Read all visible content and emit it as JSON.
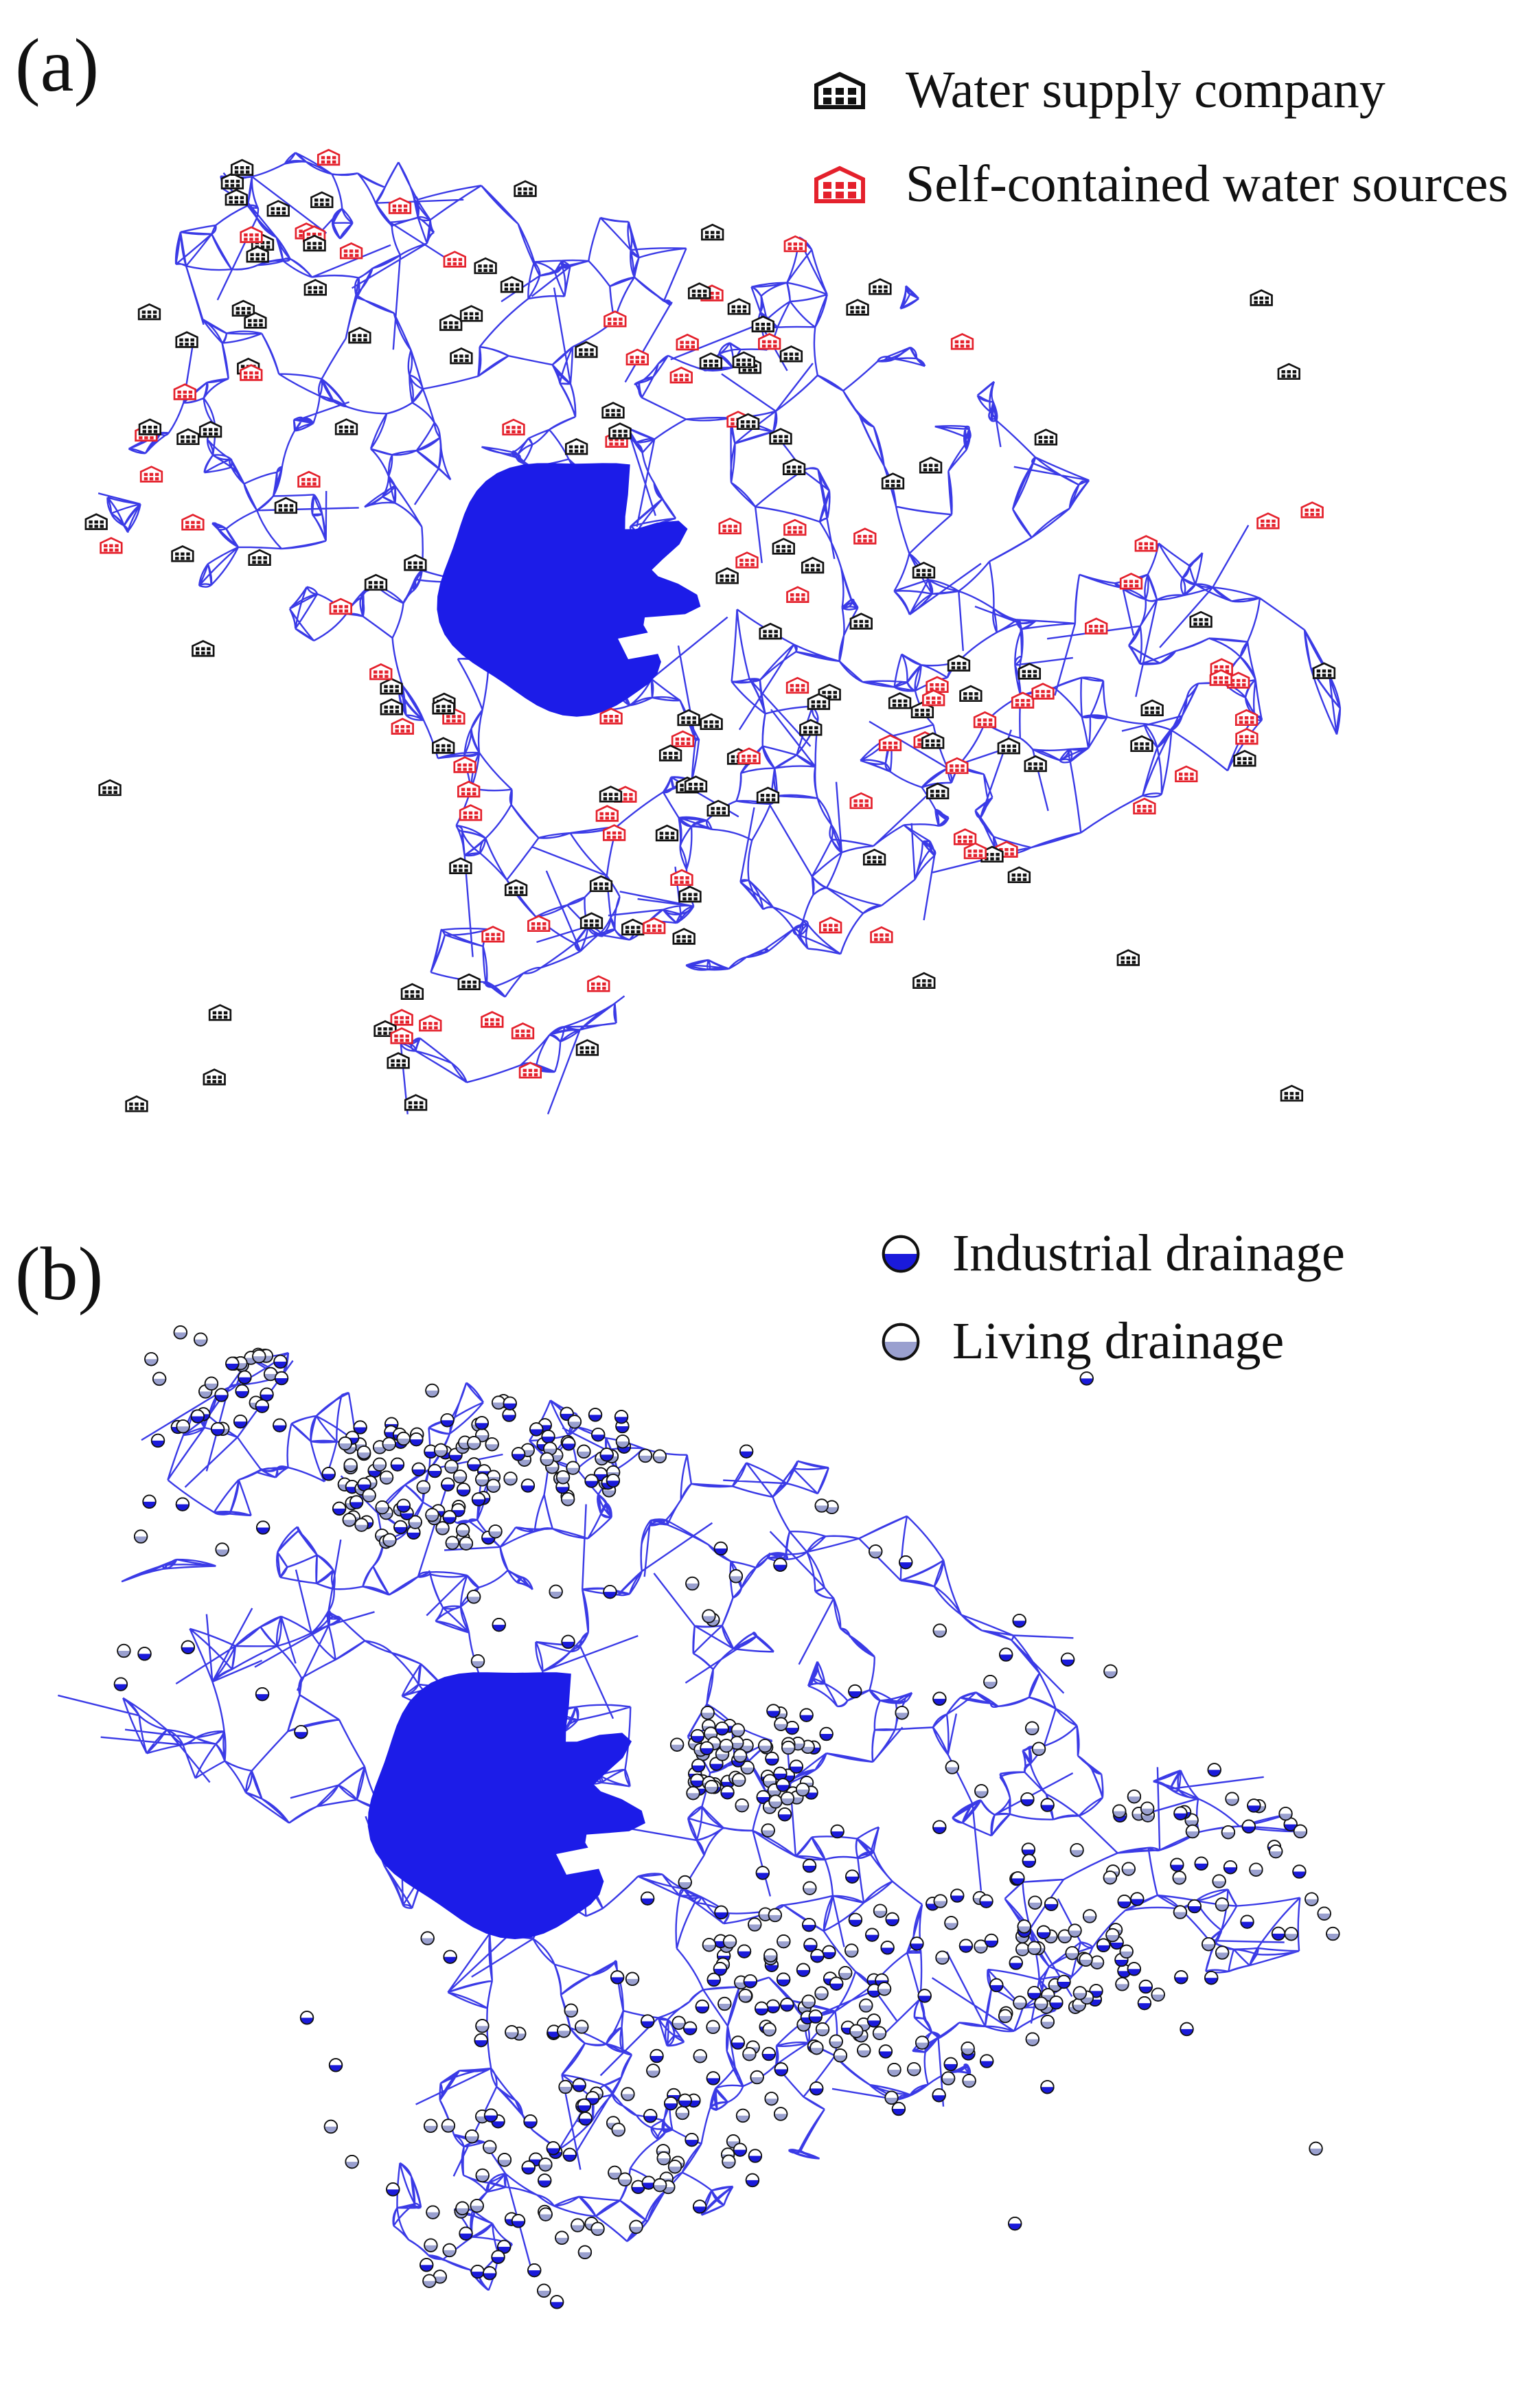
{
  "panels": [
    {
      "id": "a",
      "label": "(a)",
      "legend": [
        {
          "label": "Water supply company",
          "icon": "building-icon",
          "color": "#111111"
        },
        {
          "label": "Self-contained water sources",
          "icon": "building-icon",
          "color": "#e4212c"
        }
      ]
    },
    {
      "id": "b",
      "label": "(b)",
      "legend": [
        {
          "label": "Industrial drainage",
          "icon": "half-filled-circle-icon",
          "color": "#1a1adb"
        },
        {
          "label": "Living drainage",
          "icon": "half-filled-circle-icon",
          "color": "#9aa0cf"
        }
      ]
    }
  ],
  "colors": {
    "river_network": "#3a3ae6",
    "lake": "#1c1ce8",
    "water_supply_company": "#111111",
    "self_contained_source": "#e4212c",
    "industrial_drainage": "#1a1adb",
    "living_drainage": "#9aa0cf"
  }
}
